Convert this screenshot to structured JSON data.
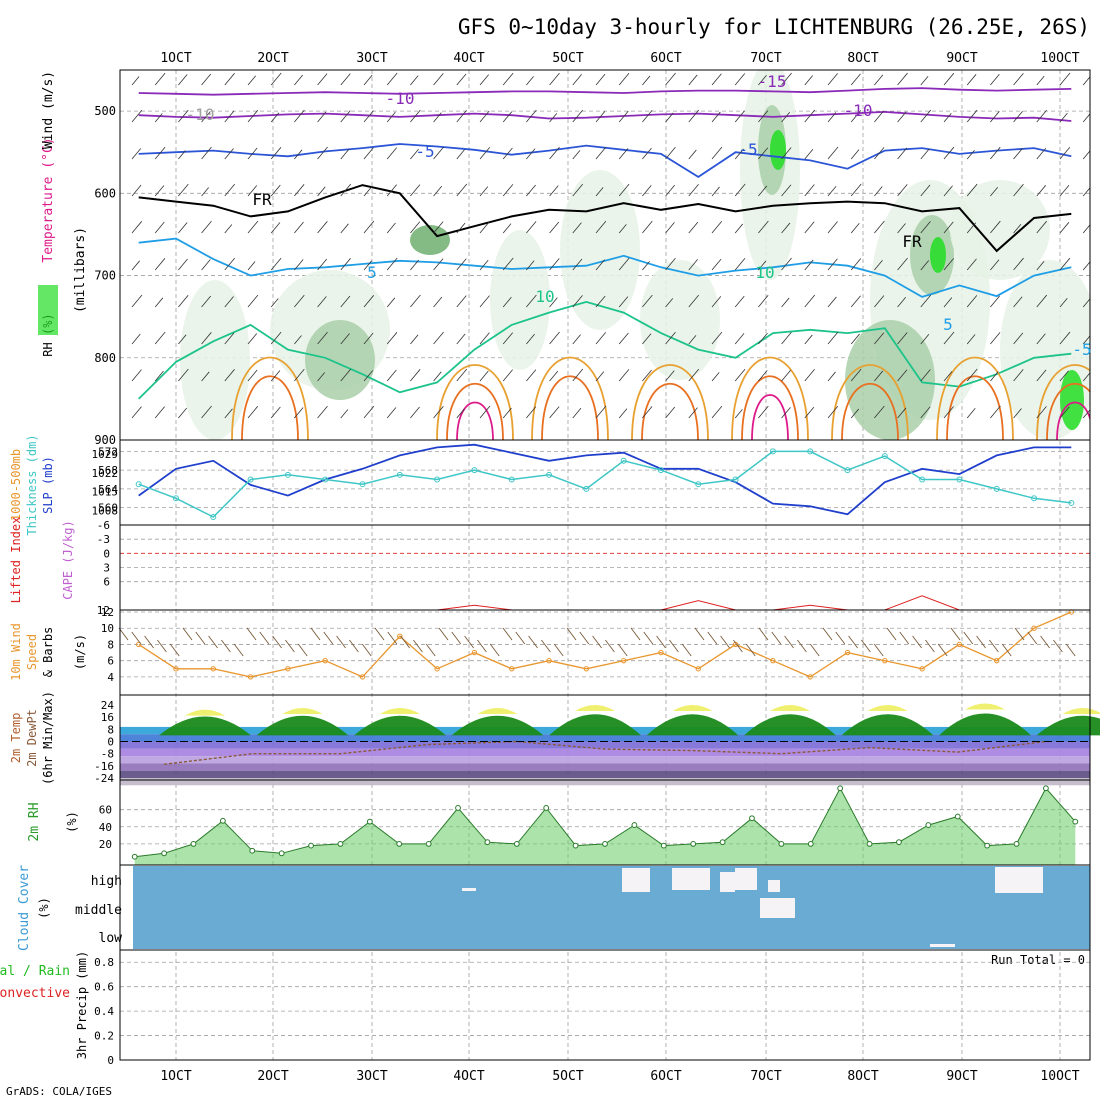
{
  "page": {
    "title": "GFS 0~10day 3-hourly for LICHTENBURG (26.25E, 26S)",
    "footer": "GrADS: COLA/IGES",
    "run_total_text": "Run Total = 0"
  },
  "colors": {
    "axis": "#000000",
    "grid": "#a0a0a0",
    "rh_light": "#e6f2e6",
    "rh_mid": "#a9cfa9",
    "rh_dark": "#6fae6f",
    "rh_bright": "#22dd22",
    "slp_line": "#1f3fcc",
    "thickness_line": "#3fc6c6",
    "wind_line": "#e8962e",
    "barb": "#7a5a3a",
    "lifted": "#dd2222",
    "temp_hill": "#1a8a1a",
    "temp_top": "#f0f070",
    "dewpt": "#8a5a3a",
    "rh2m_fill": "#66cc66",
    "cloud": "#6aabd4",
    "cloud_clear": "#f5f3f5",
    "violet": "#8a2ab8",
    "blue": "#2b55d6",
    "sky": "#1f9ee6",
    "teal": "#1cc38a",
    "orange1": "#e8a030",
    "orange2": "#e87020",
    "magenta": "#dd1a8a"
  },
  "chart_data": [
    {
      "id": "upper_air",
      "type": "contour",
      "left_labels": [
        "RH (%)",
        "Temperature (°C)",
        "Wind (m/s)"
      ],
      "ylabel": "(millibars)",
      "x_tick_labels": [
        "1OCT",
        "2OCT",
        "3OCT",
        "4OCT",
        "5OCT",
        "6OCT",
        "7OCT",
        "8OCT",
        "9OCT",
        "10OCT"
      ],
      "y_range": [
        450,
        900
      ],
      "y_ticks": [
        500,
        600,
        700,
        800,
        900
      ],
      "contour_labels": [
        "-15",
        "-10",
        "-10",
        "-5",
        "-5",
        "FR",
        "FR",
        "-5",
        "5",
        "5",
        "-10",
        "10",
        "10"
      ],
      "isotherms": [
        {
          "name": "-10",
          "color_key": "violet",
          "values": [
            478,
            479,
            480,
            479,
            478,
            477,
            478,
            479,
            478,
            477,
            476,
            476,
            477,
            478,
            476,
            475,
            475,
            476,
            477,
            475,
            473,
            472,
            474,
            475,
            474,
            473
          ]
        },
        {
          "name": "-10b",
          "color_key": "violet",
          "values": [
            505,
            507,
            508,
            506,
            504,
            503,
            505,
            507,
            505,
            503,
            505,
            509,
            508,
            506,
            504,
            503,
            505,
            507,
            505,
            503,
            501,
            504,
            507,
            509,
            508,
            512
          ]
        },
        {
          "name": "-5",
          "color_key": "blue",
          "values": [
            552,
            550,
            548,
            552,
            555,
            549,
            545,
            540,
            543,
            547,
            553,
            548,
            542,
            547,
            552,
            580,
            550,
            555,
            560,
            570,
            548,
            545,
            552,
            548,
            545,
            555
          ]
        },
        {
          "name": "FR",
          "color_key": "black",
          "values": [
            605,
            610,
            615,
            628,
            622,
            605,
            590,
            600,
            652,
            640,
            628,
            620,
            622,
            612,
            620,
            613,
            622,
            615,
            612,
            610,
            612,
            622,
            618,
            670,
            630,
            625
          ]
        },
        {
          "name": "5",
          "color_key": "sky",
          "values": [
            660,
            655,
            680,
            700,
            692,
            690,
            686,
            682,
            684,
            688,
            692,
            690,
            688,
            676,
            690,
            700,
            694,
            690,
            684,
            688,
            700,
            726,
            712,
            725,
            700,
            690
          ]
        },
        {
          "name": "10",
          "color_key": "teal",
          "values": [
            850,
            805,
            780,
            760,
            790,
            800,
            820,
            842,
            830,
            790,
            760,
            745,
            732,
            745,
            770,
            790,
            800,
            770,
            766,
            770,
            764,
            830,
            835,
            820,
            800,
            795
          ]
        }
      ]
    },
    {
      "id": "slp_thickness",
      "type": "line",
      "left_labels": [
        "1000-500mb",
        "Thickness (dm)",
        "SLP (mb)"
      ],
      "thickness_ticks": [
        560,
        564,
        568,
        572
      ],
      "slp_ticks": [
        1008,
        1015,
        1022,
        1029
      ],
      "slp": [
        1012,
        1022,
        1025,
        1016,
        1012,
        1018,
        1022,
        1027,
        1030,
        1031,
        1028,
        1025,
        1027,
        1028,
        1022,
        1022,
        1017,
        1009,
        1008,
        1005,
        1017,
        1022,
        1020,
        1027,
        1030,
        1030
      ],
      "thickness": [
        565,
        562,
        558,
        566,
        567,
        566,
        565,
        567,
        566,
        568,
        566,
        567,
        564,
        570,
        568,
        565,
        566,
        572,
        572,
        568,
        571,
        566,
        566,
        564,
        562,
        561
      ]
    },
    {
      "id": "lifted_cape",
      "type": "line",
      "left_labels": [
        "Lifted Index",
        "CAPE (J/kg)"
      ],
      "y_ticks": [
        -6,
        -3,
        0,
        3,
        6
      ],
      "lifted_index": [
        12,
        12,
        12,
        12,
        12,
        12,
        12,
        12,
        12,
        11,
        12,
        12,
        12,
        12,
        12,
        10,
        12,
        12,
        11,
        12,
        12,
        9,
        12,
        12,
        12,
        12
      ]
    },
    {
      "id": "wind10m",
      "type": "line",
      "left_labels": [
        "10m Wind",
        "Speed",
        "& Barbs"
      ],
      "ylabel": "(m/s)",
      "y_ticks": [
        4,
        6,
        8,
        10,
        12
      ],
      "speed": [
        8,
        5,
        5,
        4,
        5,
        6,
        4,
        9,
        5,
        7,
        5,
        6,
        5,
        6,
        7,
        5,
        8,
        6,
        4,
        7,
        6,
        5,
        8,
        6,
        10,
        12
      ]
    },
    {
      "id": "temp2m",
      "type": "area",
      "left_labels": [
        "2m Temp",
        "2m DewPt",
        "(6hr Min/Max)"
      ],
      "y_ticks": [
        24,
        16,
        8,
        0,
        -8,
        -16,
        -24
      ],
      "y_tick_labels": [
        "24",
        "16",
        "8",
        "0",
        "-8",
        "-16",
        "-24"
      ],
      "temp_max": [
        21,
        22,
        22,
        22,
        24,
        24,
        24,
        24,
        25,
        22,
        21
      ],
      "dewpt": [
        -15,
        -8,
        -8,
        -2,
        0,
        -5,
        -6,
        -8,
        -4,
        -7,
        0
      ]
    },
    {
      "id": "rh2m",
      "type": "area",
      "left_labels": [
        "2m RH"
      ],
      "ylabel": "(%)",
      "y_ticks": [
        20,
        40,
        60
      ],
      "rh": [
        5,
        9,
        20,
        47,
        12,
        9,
        18,
        20,
        46,
        20,
        20,
        62,
        22,
        20,
        62,
        18,
        20,
        42,
        18,
        20,
        22,
        50,
        20,
        20,
        85,
        20,
        22,
        42,
        52,
        18,
        20,
        85,
        46
      ]
    },
    {
      "id": "cloud",
      "type": "heatmap",
      "left_labels": [
        "Cloud Cover",
        "(%)"
      ],
      "level_labels": [
        "high",
        "middle",
        "low"
      ]
    },
    {
      "id": "precip",
      "type": "bar",
      "left_labels": [
        "Total / Rain",
        "Convective",
        "3hr Precip (mm)"
      ],
      "y_ticks": [
        0,
        0.2,
        0.4,
        0.6,
        0.8
      ],
      "y_tick_labels": [
        "0",
        "0.2",
        "0.4",
        "0.6",
        "0.8"
      ],
      "values": []
    }
  ]
}
